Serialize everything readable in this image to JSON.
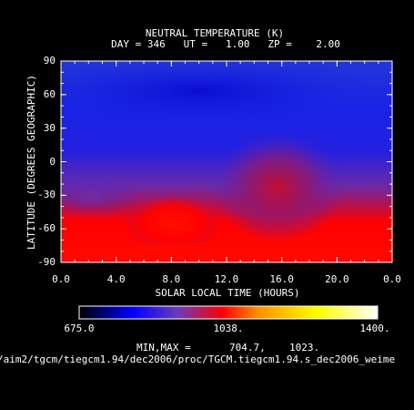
{
  "chart_data": {
    "type": "heatmap",
    "title": "NEUTRAL TEMPERATURE (K)",
    "subtitle": "DAY = 346   UT =   1.00   ZP =    2.00",
    "xlabel": "SOLAR LOCAL TIME (HOURS)",
    "ylabel": "LATITUDE (DEGREES GEOGRAPHIC)",
    "x_ticks": [
      "0.0",
      "4.0",
      "8.0",
      "12.0",
      "16.0",
      "20.0",
      "0.0"
    ],
    "y_ticks": [
      "90",
      "60",
      "30",
      "0",
      "-30",
      "-60",
      "-90"
    ],
    "xlim": [
      0,
      24
    ],
    "ylim": [
      -90,
      90
    ],
    "features": [
      {
        "name": "hot-spot-southern",
        "x": 8.0,
        "y": -50,
        "value": 1023
      },
      {
        "name": "warm-region",
        "x": 15.5,
        "y": -10,
        "value": 960
      },
      {
        "name": "cold-region-north",
        "x": 10.0,
        "y": 75,
        "value": 705
      }
    ],
    "colorbar": {
      "min_label": "675.0",
      "mid_label": "1038.",
      "max_label": "1400.",
      "range": [
        675,
        1400
      ],
      "stops": [
        "#000000",
        "#0000ff",
        "#6a3ab8",
        "#ff0000",
        "#ff9000",
        "#ffff00",
        "#ffffff"
      ]
    },
    "minmax_label": "MIN,MAX =",
    "min_value": "704.7,",
    "max_value": "1023.",
    "file_path": "/aim2/tgcm/tiegcm1.94/dec2006/proc/TGCM.tiegcm1.94.s_dec2006_weime"
  }
}
